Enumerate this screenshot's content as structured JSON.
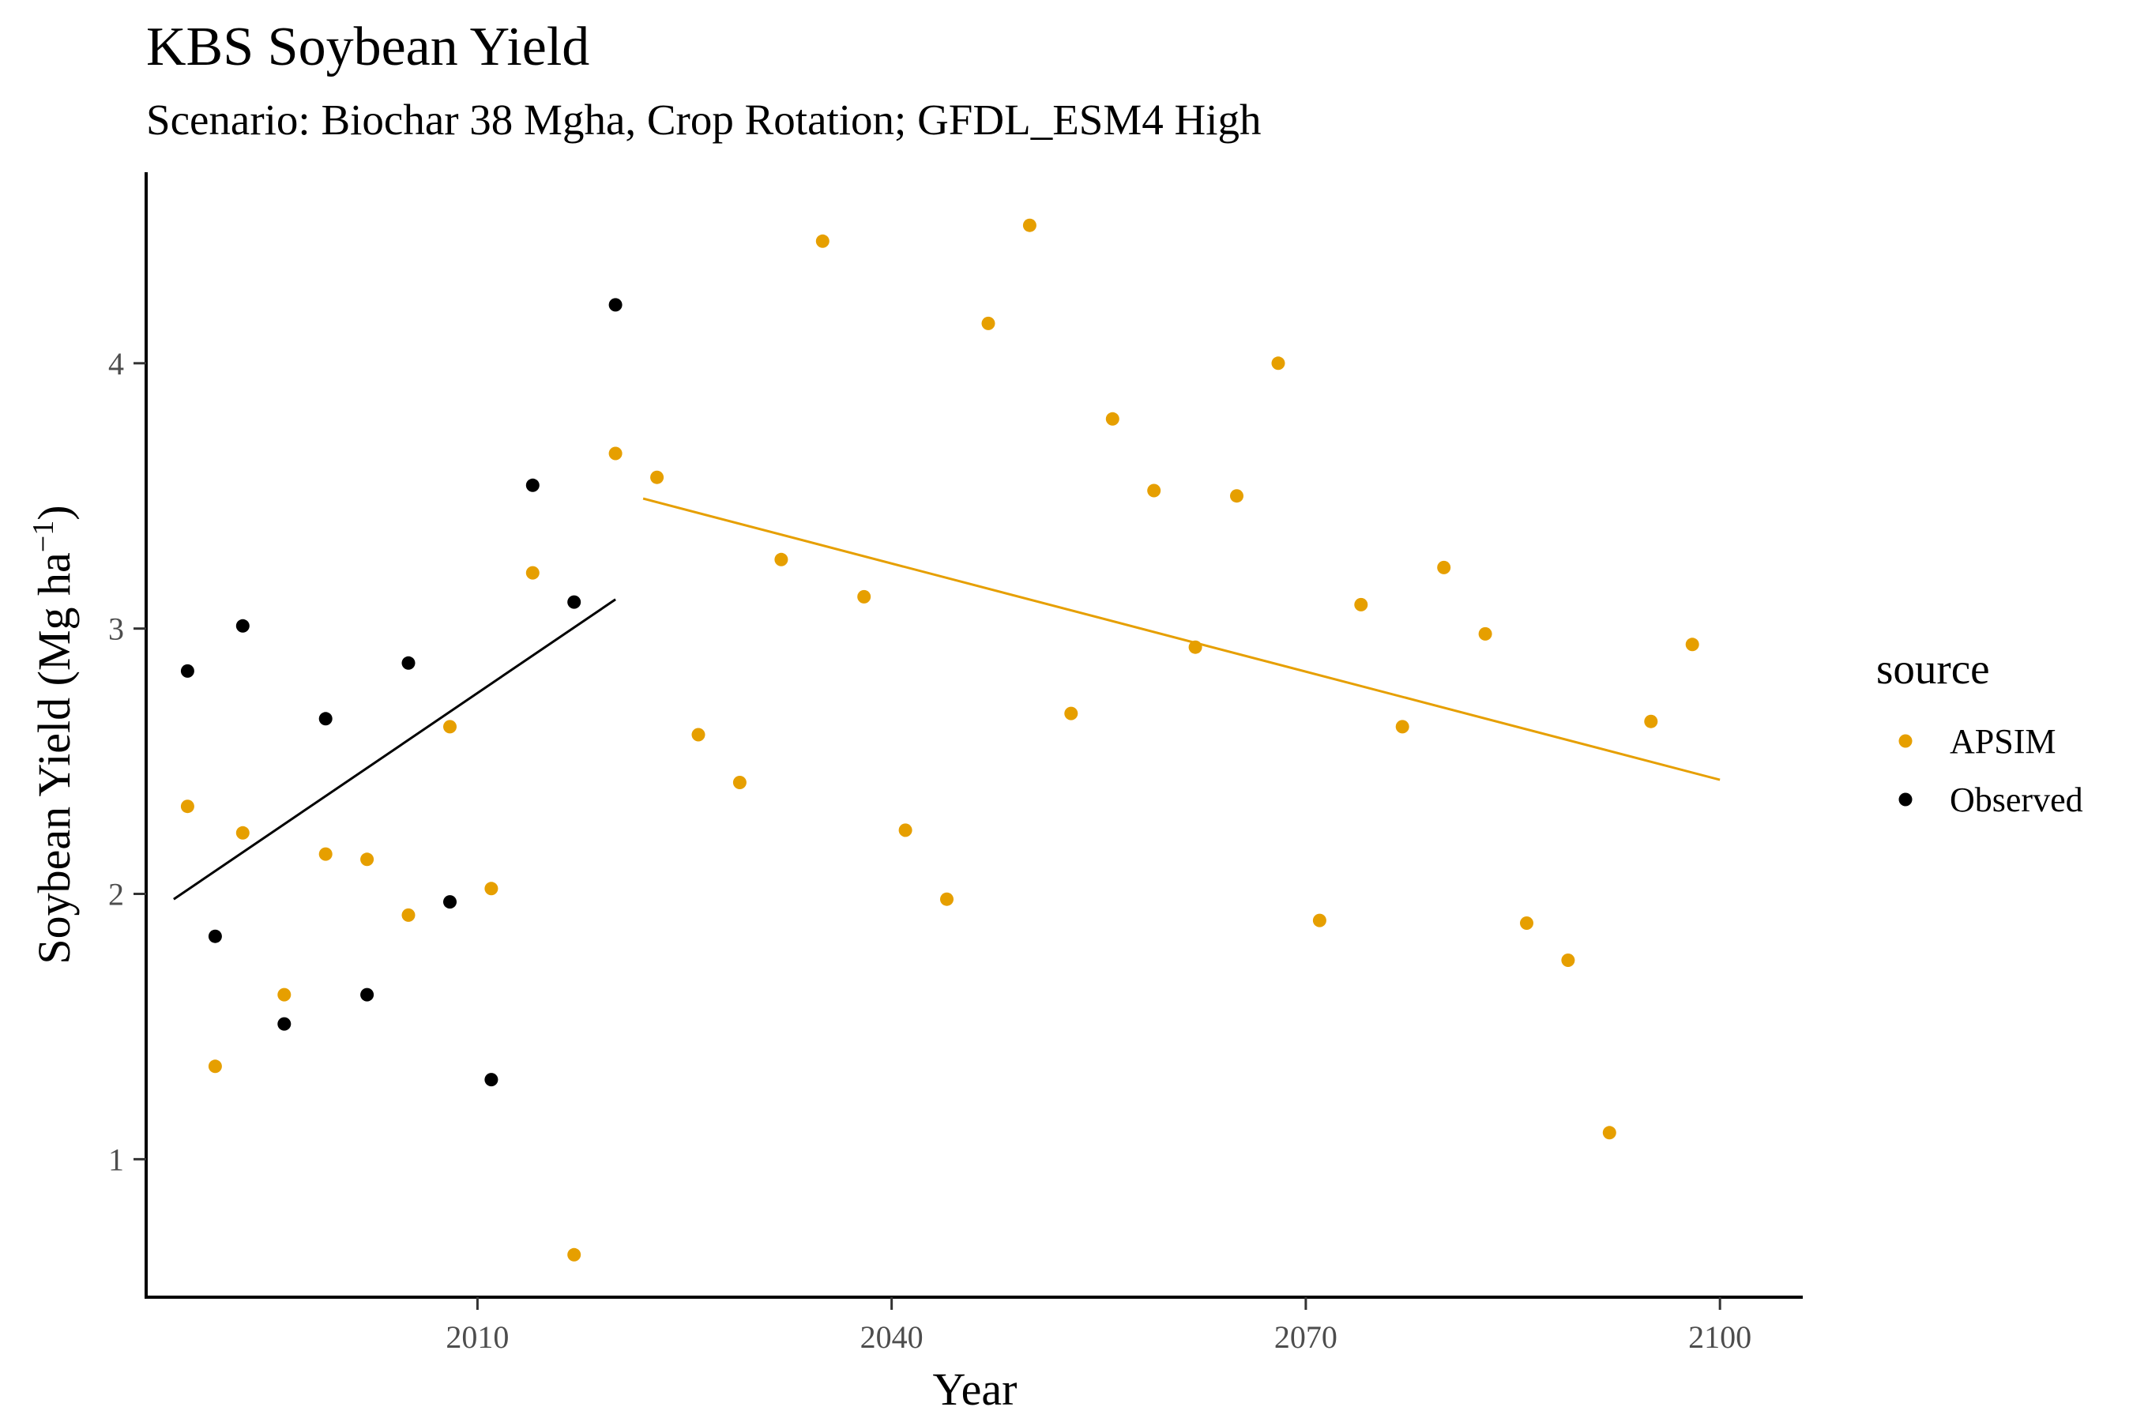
{
  "chart_data": {
    "type": "scatter",
    "title": "KBS Soybean Yield",
    "subtitle": "Scenario: Biochar 38 Mgha, Crop Rotation; GFDL_ESM4 High",
    "xlabel": "Year",
    "ylabel": "Soybean Yield (Mg ha",
    "ylabel_sup": "−1",
    "ylabel_close": ")",
    "xlim": [
      1986,
      2106
    ],
    "ylim": [
      0.48,
      4.72
    ],
    "x_ticks": [
      2010,
      2040,
      2070,
      2100
    ],
    "y_ticks": [
      1,
      2,
      3,
      4
    ],
    "grid": false,
    "legend": {
      "title": "source",
      "position": "right"
    },
    "series": [
      {
        "name": "APSIM",
        "color": "#E69F00",
        "points": [
          [
            1989,
            2.33
          ],
          [
            1991,
            1.35
          ],
          [
            1993,
            2.23
          ],
          [
            1996,
            1.62
          ],
          [
            1999,
            2.15
          ],
          [
            2002,
            2.13
          ],
          [
            2005,
            1.92
          ],
          [
            2008,
            2.63
          ],
          [
            2011,
            2.02
          ],
          [
            2014,
            3.21
          ],
          [
            2017,
            0.64
          ],
          [
            2020,
            3.66
          ],
          [
            2023,
            3.57
          ],
          [
            2026,
            2.6
          ],
          [
            2029,
            2.42
          ],
          [
            2032,
            3.26
          ],
          [
            2035,
            4.46
          ],
          [
            2038,
            3.12
          ],
          [
            2041,
            2.24
          ],
          [
            2044,
            1.98
          ],
          [
            2047,
            4.15
          ],
          [
            2050,
            4.52
          ],
          [
            2053,
            2.68
          ],
          [
            2056,
            3.79
          ],
          [
            2059,
            3.52
          ],
          [
            2062,
            2.93
          ],
          [
            2065,
            3.5
          ],
          [
            2068,
            4.0
          ],
          [
            2071,
            1.9
          ],
          [
            2074,
            3.09
          ],
          [
            2077,
            2.63
          ],
          [
            2080,
            3.23
          ],
          [
            2083,
            2.98
          ],
          [
            2086,
            1.89
          ],
          [
            2089,
            1.75
          ],
          [
            2092,
            1.1
          ],
          [
            2095,
            2.65
          ],
          [
            2098,
            2.94
          ]
        ],
        "trend": [
          [
            2022,
            3.49
          ],
          [
            2100,
            2.43
          ]
        ]
      },
      {
        "name": "Observed",
        "color": "#000000",
        "points": [
          [
            1989,
            2.84
          ],
          [
            1991,
            1.84
          ],
          [
            1993,
            3.01
          ],
          [
            1996,
            1.51
          ],
          [
            1999,
            2.66
          ],
          [
            2002,
            1.62
          ],
          [
            2005,
            2.87
          ],
          [
            2008,
            1.97
          ],
          [
            2011,
            1.3
          ],
          [
            2014,
            3.54
          ],
          [
            2017,
            3.1
          ],
          [
            2020,
            4.22
          ]
        ],
        "trend": [
          [
            1988,
            1.98
          ],
          [
            2020,
            3.11
          ]
        ]
      }
    ]
  }
}
